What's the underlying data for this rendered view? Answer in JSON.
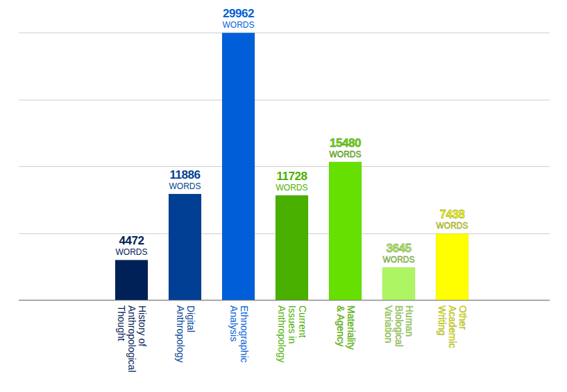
{
  "chart_data": {
    "type": "bar",
    "categories": [
      "History of Anthropological Thought",
      "Digital Anthropology",
      "Ethnographic Analysis",
      "Current Issues in Anthropology",
      "Materiality & Agency",
      "Human Biological Variation",
      "Other Academic Writing"
    ],
    "values": [
      4472,
      11886,
      29962,
      11728,
      15480,
      3645,
      7438
    ],
    "value_labels": [
      "4472 WORDS",
      "11886 WORDS",
      "29962 WORDS",
      "11728 WORDS",
      "15480 WORDS",
      "3645 WORDS",
      "7438 WORDS"
    ],
    "colors": [
      "#002157",
      "#003f94",
      "#005fd8",
      "#4ab000",
      "#66e000",
      "#adf562",
      "#ffff00"
    ],
    "ylim": [
      0,
      30000
    ],
    "yticks": [
      0,
      7500,
      15000,
      22500,
      30000
    ],
    "grid": true,
    "data_labels": true,
    "tick_labels": "x"
  }
}
